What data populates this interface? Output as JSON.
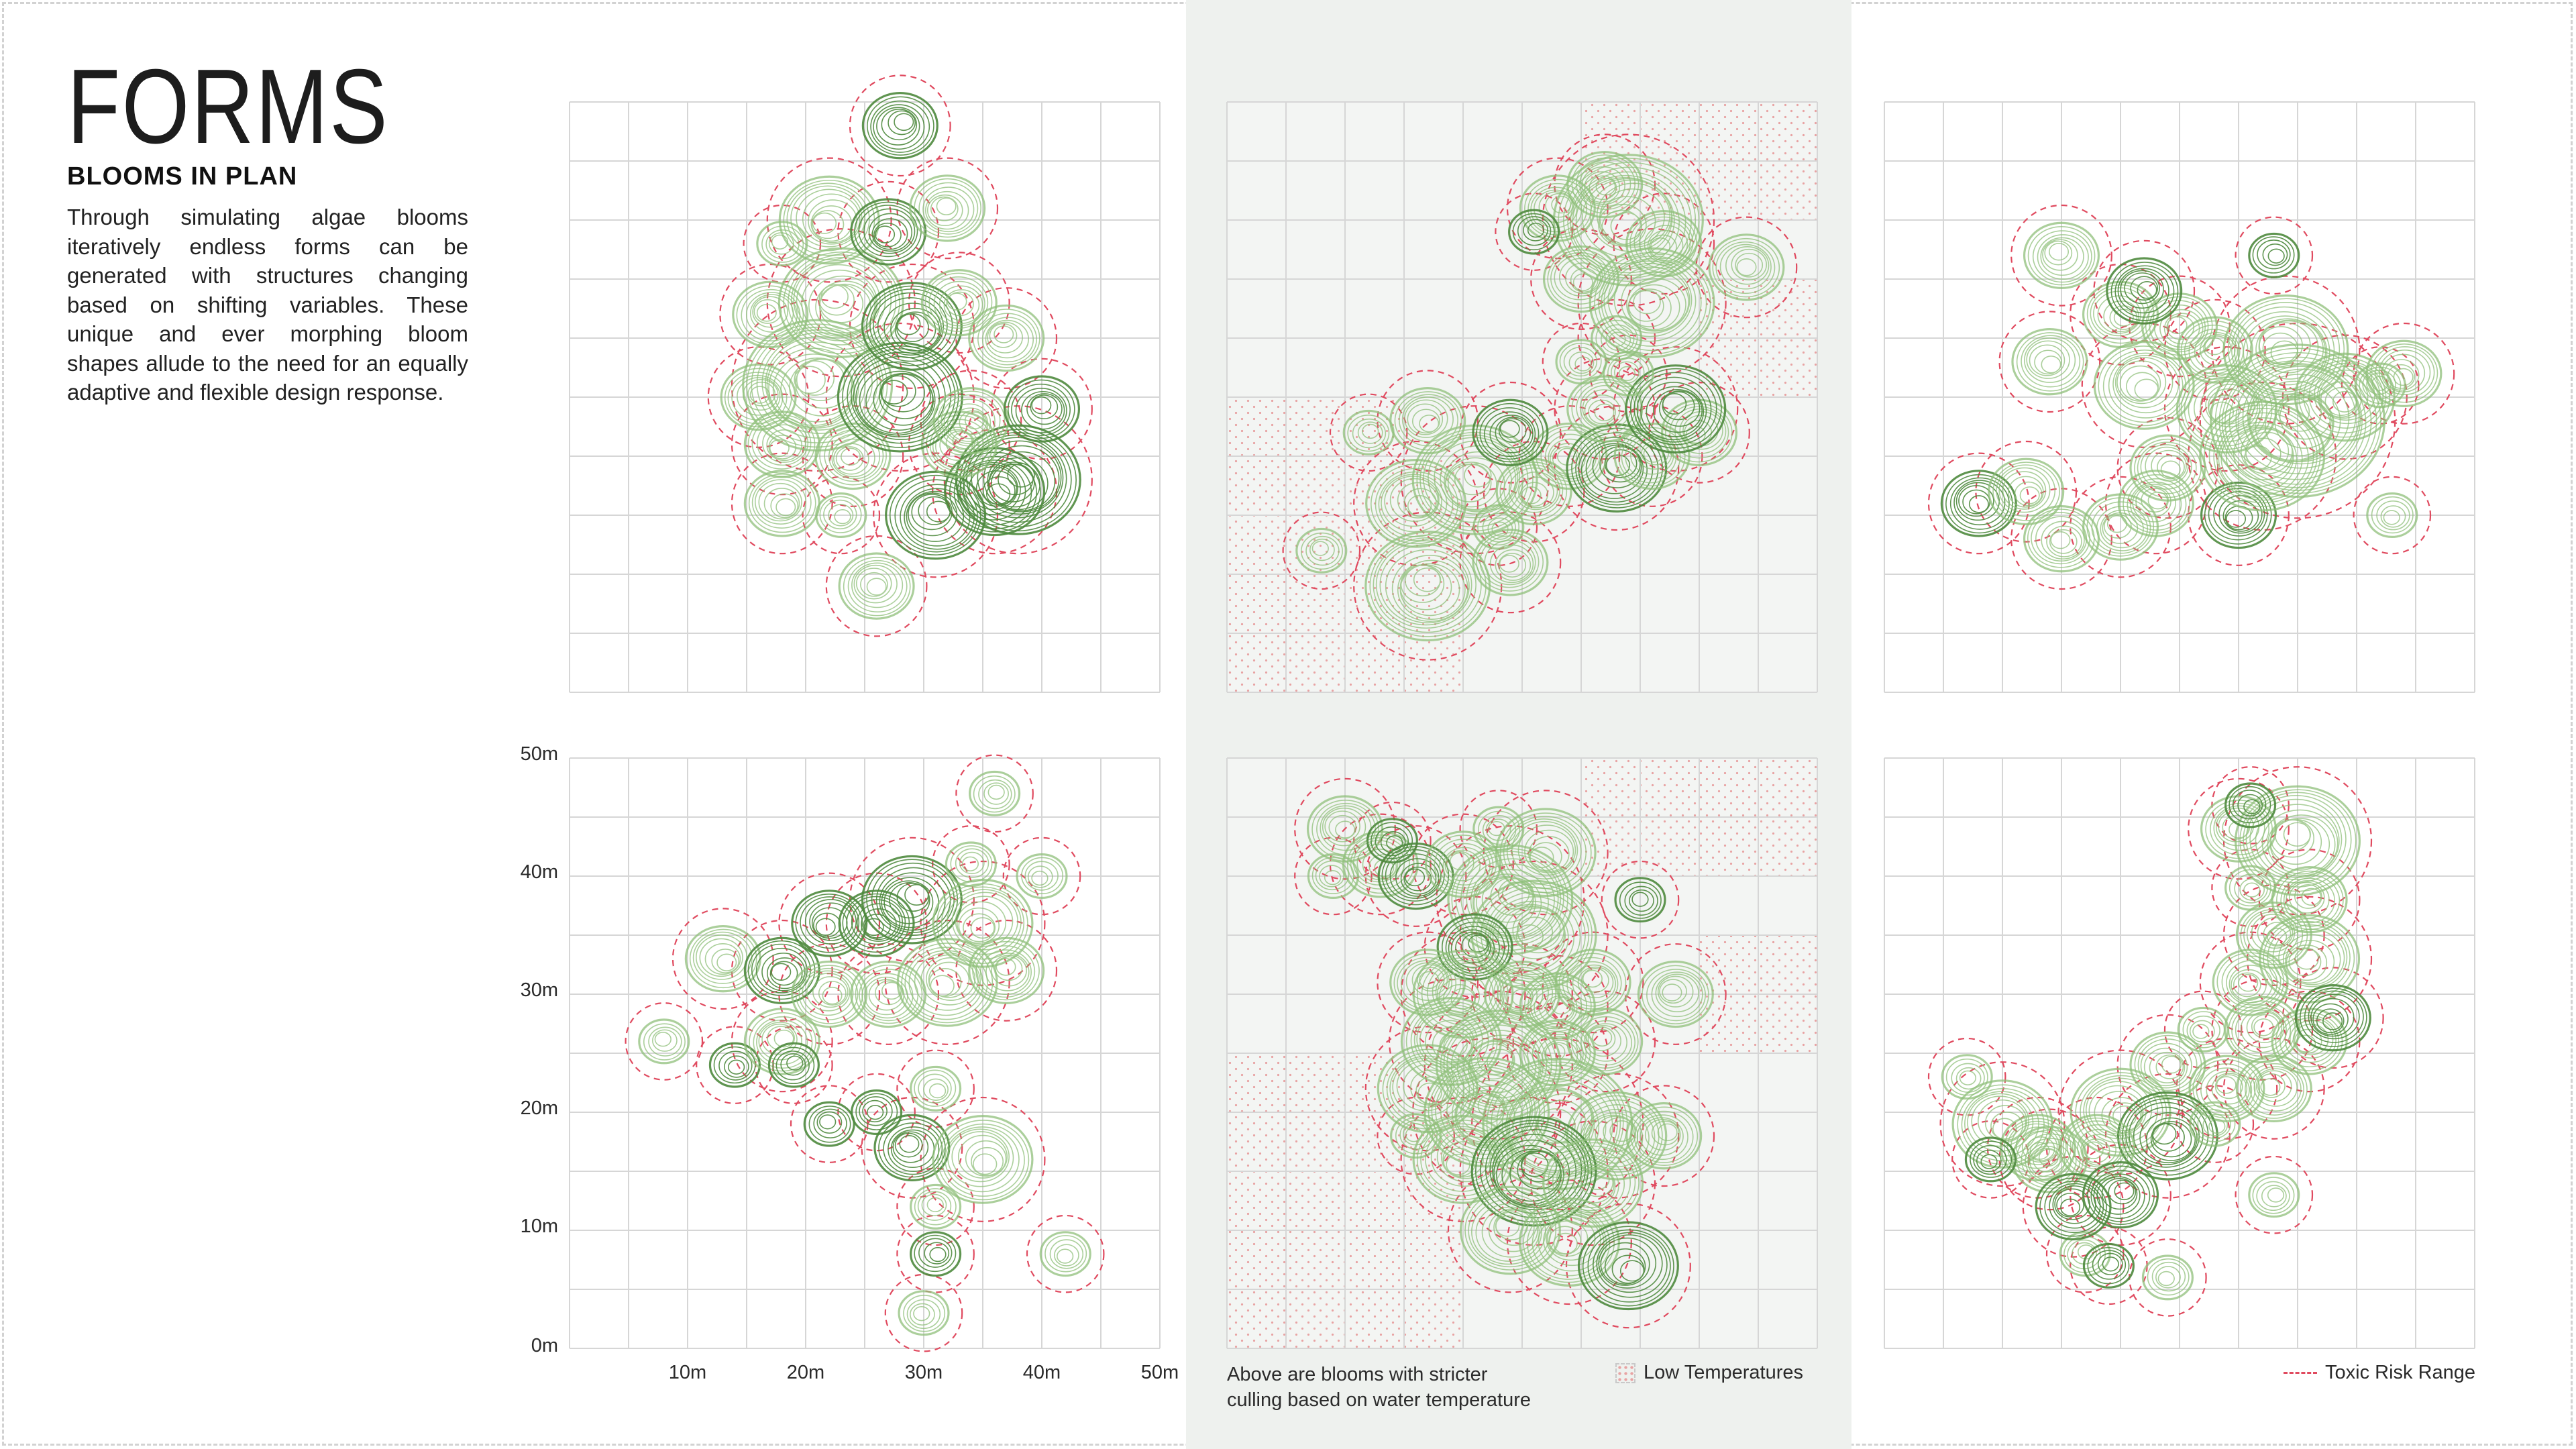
{
  "header": {
    "title": "FORMS",
    "subtitle": "BLOOMS IN PLAN",
    "description": "Through simulating algae blooms iteratively endless forms can be generated with structures changing based on shifting variables. These unique and ever morphing bloom shapes allude to the need for an equally adaptive and flexible design response."
  },
  "axes": {
    "y_ticks": [
      "50m",
      "40m",
      "30m",
      "20m",
      "10m",
      "0m"
    ],
    "x_ticks": [
      "10m",
      "20m",
      "30m",
      "40m",
      "50m"
    ]
  },
  "caption": {
    "text": "Above are blooms with stricter\nculling based on water temperature"
  },
  "legend": {
    "low_temperatures": "Low Temperatures",
    "toxic_risk": "Toxic Risk Range"
  },
  "colors": {
    "dark_green": "#2f5a2a",
    "mid_green": "#4e8a3e",
    "light_green": "#8fc07a",
    "toxic_dash": "#e04a5f",
    "grid": "#d6d6d6",
    "cold_dot": "#e8a3a3",
    "band": "#eef1ee"
  },
  "plans": [
    {
      "id": "top-left",
      "cold": false,
      "blobs": [
        [
          26,
          9,
          3,
          2
        ],
        [
          18,
          16,
          3,
          2
        ],
        [
          23,
          15,
          2,
          2
        ],
        [
          31,
          15,
          4,
          1
        ],
        [
          36,
          17,
          4,
          1
        ],
        [
          38,
          18,
          5,
          1
        ],
        [
          18,
          21,
          3,
          2
        ],
        [
          24,
          20,
          3,
          2
        ],
        [
          33,
          21,
          3,
          2
        ],
        [
          16,
          25,
          3,
          2
        ],
        [
          21,
          26,
          6,
          2
        ],
        [
          28,
          25,
          5,
          1
        ],
        [
          34,
          23,
          3,
          2
        ],
        [
          40,
          24,
          3,
          1
        ],
        [
          17,
          32,
          3,
          2
        ],
        [
          23,
          33,
          5,
          2
        ],
        [
          29,
          31,
          4,
          1
        ],
        [
          33,
          33,
          3,
          2
        ],
        [
          37,
          30,
          3,
          2
        ],
        [
          18,
          38,
          2,
          2
        ],
        [
          22,
          40,
          4,
          2
        ],
        [
          27,
          39,
          3,
          1
        ],
        [
          32,
          41,
          3,
          2
        ],
        [
          28,
          48,
          3,
          1
        ]
      ]
    },
    {
      "id": "top-center",
      "cold": true,
      "blobs": [
        [
          8,
          12,
          2,
          2
        ],
        [
          17,
          9,
          5,
          2
        ],
        [
          24,
          11,
          3,
          2
        ],
        [
          23,
          14,
          2,
          2
        ],
        [
          16,
          16,
          4,
          2
        ],
        [
          21,
          18,
          5,
          2
        ],
        [
          26,
          17,
          3,
          2
        ],
        [
          29,
          20,
          3,
          2
        ],
        [
          33,
          19,
          4,
          1
        ],
        [
          36,
          20,
          3,
          2
        ],
        [
          40,
          22,
          3,
          2
        ],
        [
          32,
          24,
          3,
          2
        ],
        [
          38,
          24,
          4,
          1
        ],
        [
          24,
          22,
          3,
          1
        ],
        [
          12,
          22,
          2,
          2
        ],
        [
          17,
          23,
          3,
          2
        ],
        [
          34,
          27,
          2,
          2
        ],
        [
          30,
          28,
          2,
          2
        ],
        [
          33,
          30,
          2,
          2
        ],
        [
          36,
          33,
          5,
          2
        ],
        [
          30,
          35,
          3,
          2
        ],
        [
          37,
          38,
          3,
          2
        ],
        [
          34,
          40,
          6,
          2
        ],
        [
          28,
          41,
          3,
          2
        ],
        [
          44,
          36,
          3,
          2
        ],
        [
          26,
          39,
          2,
          1
        ],
        [
          32,
          43,
          3,
          2
        ]
      ]
    },
    {
      "id": "top-right",
      "cold": false,
      "blobs": [
        [
          8,
          16,
          3,
          1
        ],
        [
          12,
          17,
          3,
          2
        ],
        [
          15,
          13,
          3,
          2
        ],
        [
          20,
          14,
          3,
          2
        ],
        [
          23,
          16,
          3,
          2
        ],
        [
          24,
          19,
          3,
          2
        ],
        [
          30,
          15,
          3,
          1
        ],
        [
          32,
          20,
          5,
          2
        ],
        [
          35,
          23,
          7,
          2
        ],
        [
          29,
          24,
          4,
          2
        ],
        [
          39,
          25,
          4,
          2
        ],
        [
          44,
          27,
          3,
          2
        ],
        [
          34,
          29,
          5,
          2
        ],
        [
          28,
          29,
          3,
          2
        ],
        [
          22,
          26,
          4,
          2
        ],
        [
          14,
          28,
          3,
          2
        ],
        [
          20,
          32,
          3,
          2
        ],
        [
          25,
          31,
          3,
          2
        ],
        [
          15,
          37,
          3,
          2
        ],
        [
          22,
          34,
          3,
          1
        ],
        [
          42,
          26,
          2,
          2
        ],
        [
          33,
          37,
          2,
          1
        ],
        [
          43,
          15,
          2,
          2
        ]
      ]
    },
    {
      "id": "bottom-left",
      "cold": false,
      "blobs": [
        [
          8,
          26,
          2,
          2
        ],
        [
          13,
          33,
          3,
          2
        ],
        [
          18,
          32,
          3,
          1
        ],
        [
          14,
          24,
          2,
          1
        ],
        [
          18,
          26,
          3,
          2
        ],
        [
          22,
          30,
          3,
          2
        ],
        [
          26,
          36,
          3,
          1
        ],
        [
          29,
          38,
          4,
          1
        ],
        [
          27,
          30,
          3,
          2
        ],
        [
          32,
          31,
          4,
          2
        ],
        [
          35,
          36,
          4,
          2
        ],
        [
          34,
          41,
          2,
          2
        ],
        [
          40,
          40,
          2,
          2
        ],
        [
          37,
          32,
          3,
          2
        ],
        [
          36,
          47,
          2,
          2
        ],
        [
          22,
          19,
          2,
          1
        ],
        [
          26,
          20,
          2,
          1
        ],
        [
          31,
          22,
          2,
          2
        ],
        [
          29,
          17,
          3,
          1
        ],
        [
          35,
          16,
          4,
          2
        ],
        [
          31,
          12,
          2,
          2
        ],
        [
          31,
          8,
          2,
          1
        ],
        [
          42,
          8,
          2,
          2
        ],
        [
          30,
          3,
          2,
          2
        ],
        [
          19,
          24,
          2,
          1
        ],
        [
          22,
          36,
          3,
          1
        ]
      ]
    },
    {
      "id": "bottom-center",
      "cold": true,
      "blobs": [
        [
          10,
          44,
          3,
          2
        ],
        [
          13,
          41,
          3,
          2
        ],
        [
          16,
          40,
          3,
          1
        ],
        [
          20,
          41,
          3,
          2
        ],
        [
          23,
          44,
          2,
          2
        ],
        [
          27,
          42,
          4,
          2
        ],
        [
          24,
          38,
          5,
          2
        ],
        [
          26,
          35,
          5,
          2
        ],
        [
          21,
          34,
          3,
          1
        ],
        [
          17,
          31,
          3,
          2
        ],
        [
          20,
          30,
          4,
          2
        ],
        [
          25,
          30,
          3,
          2
        ],
        [
          28,
          29,
          3,
          2
        ],
        [
          31,
          31,
          3,
          2
        ],
        [
          38,
          30,
          3,
          2
        ],
        [
          19,
          26,
          4,
          2
        ],
        [
          23,
          24,
          5,
          2
        ],
        [
          28,
          25,
          3,
          2
        ],
        [
          32,
          26,
          3,
          2
        ],
        [
          17,
          22,
          4,
          2
        ],
        [
          22,
          20,
          5,
          2
        ],
        [
          28,
          19,
          6,
          2
        ],
        [
          33,
          18,
          4,
          2
        ],
        [
          37,
          18,
          3,
          2
        ],
        [
          20,
          16,
          4,
          2
        ],
        [
          26,
          15,
          5,
          1
        ],
        [
          31,
          14,
          4,
          2
        ],
        [
          24,
          10,
          4,
          2
        ],
        [
          29,
          9,
          4,
          2
        ],
        [
          34,
          7,
          4,
          1
        ],
        [
          16,
          18,
          2,
          2
        ],
        [
          9,
          40,
          2,
          2
        ],
        [
          14,
          43,
          2,
          1
        ],
        [
          35,
          38,
          2,
          1
        ]
      ]
    },
    {
      "id": "bottom-right",
      "cold": false,
      "blobs": [
        [
          30,
          44,
          3,
          2
        ],
        [
          35,
          43,
          5,
          2
        ],
        [
          31,
          46,
          2,
          1
        ],
        [
          31,
          39,
          2,
          2
        ],
        [
          36,
          38,
          3,
          2
        ],
        [
          33,
          35,
          3,
          2
        ],
        [
          36,
          33,
          4,
          2
        ],
        [
          31,
          31,
          3,
          2
        ],
        [
          27,
          27,
          2,
          2
        ],
        [
          32,
          27,
          3,
          2
        ],
        [
          36,
          26,
          3,
          2
        ],
        [
          38,
          28,
          3,
          1
        ],
        [
          24,
          24,
          3,
          2
        ],
        [
          29,
          22,
          3,
          2
        ],
        [
          33,
          22,
          3,
          2
        ],
        [
          20,
          20,
          4,
          2
        ],
        [
          24,
          18,
          4,
          1
        ],
        [
          28,
          19,
          2,
          2
        ],
        [
          7,
          23,
          2,
          2
        ],
        [
          10,
          19,
          4,
          2
        ],
        [
          13,
          17,
          3,
          2
        ],
        [
          18,
          17,
          3,
          2
        ],
        [
          14,
          16,
          3,
          2
        ],
        [
          20,
          13,
          3,
          1
        ],
        [
          17,
          8,
          2,
          2
        ],
        [
          19,
          7,
          2,
          1
        ],
        [
          24,
          6,
          2,
          2
        ],
        [
          9,
          16,
          2,
          1
        ],
        [
          33,
          13,
          2,
          2
        ],
        [
          16,
          12,
          3,
          1
        ]
      ]
    }
  ]
}
